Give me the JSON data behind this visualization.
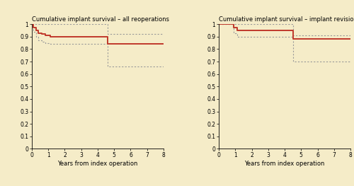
{
  "title_left": "Cumulative implant survival – all reoperations",
  "title_right": "Cumulative implant survival – implant revisions",
  "xlabel": "Years from index operation",
  "background_color": "#F5ECC8",
  "panel_bg": "#F5ECC8",
  "solid_color": "#C0392B",
  "ci_color": "#999999",
  "ylim": [
    0,
    1.0
  ],
  "xlim": [
    0,
    8
  ],
  "yticks": [
    0,
    0.1,
    0.2,
    0.3,
    0.4,
    0.5,
    0.6,
    0.7,
    0.8,
    0.9,
    1.0
  ],
  "xticks": [
    0,
    1,
    2,
    3,
    4,
    5,
    6,
    7,
    8
  ],
  "left_survival": {
    "times": [
      0,
      0.1,
      0.25,
      0.4,
      0.6,
      0.8,
      1.1,
      4.6,
      8.0
    ],
    "values": [
      1.0,
      0.97,
      0.95,
      0.93,
      0.92,
      0.91,
      0.9,
      0.84,
      0.84
    ]
  },
  "left_ci_upper": {
    "times": [
      0,
      0.1,
      4.6,
      8.0
    ],
    "values": [
      1.0,
      1.0,
      0.92,
      0.92
    ]
  },
  "left_ci_lower": {
    "times": [
      0,
      0.1,
      0.25,
      0.4,
      0.6,
      0.8,
      1.1,
      4.6,
      8.0
    ],
    "values": [
      1.0,
      0.94,
      0.9,
      0.87,
      0.86,
      0.85,
      0.84,
      0.66,
      0.66
    ]
  },
  "right_survival": {
    "times": [
      0,
      0.9,
      1.1,
      4.5,
      8.0
    ],
    "values": [
      1.0,
      0.97,
      0.95,
      0.88,
      0.88
    ]
  },
  "right_ci_upper": {
    "times": [
      0,
      0.9,
      4.5,
      8.0
    ],
    "values": [
      1.0,
      1.0,
      0.91,
      0.91
    ]
  },
  "right_ci_lower": {
    "times": [
      0,
      0.9,
      1.1,
      4.5,
      8.0
    ],
    "values": [
      1.0,
      0.93,
      0.9,
      0.7,
      0.7
    ]
  }
}
